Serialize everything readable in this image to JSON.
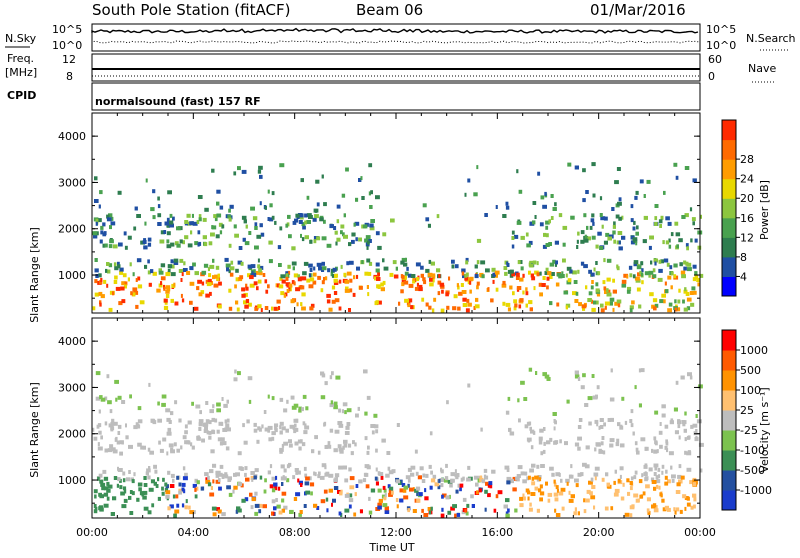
{
  "header": {
    "station": "South Pole Station (fitACF)",
    "beam": "Beam 06",
    "date": "01/Mar/2016"
  },
  "top_panels": {
    "nsky_label": "N.Sky",
    "nsearch_label": "N.Search",
    "log_ticks": [
      "10^5",
      "10^0"
    ],
    "freq_label": "Freq.",
    "freq_unit": "[MHz]",
    "freq_ticks": [
      "12",
      "8"
    ],
    "nave_label": "Nave",
    "nave_ticks": [
      "60",
      "0"
    ],
    "cpid_label": "CPID",
    "cpid_text": "normalsound (fast) 157 RF"
  },
  "colors": {
    "power_scale": [
      "#0000ff",
      "#1f4fa3",
      "#2e7d4f",
      "#49a14f",
      "#8cc63f",
      "#e8d800",
      "#ff9c00",
      "#ff6a00",
      "#ff2a00"
    ],
    "velocity_scale": [
      "#ff0000",
      "#ff5a00",
      "#ff9200",
      "#ffc070",
      "#bdbdbd",
      "#7cc24f",
      "#3b8f55",
      "#2450a0",
      "#1a3ccc"
    ]
  },
  "chart_data": [
    {
      "type": "heatmap",
      "title": "Power",
      "ylabel": "Slant Range [km]",
      "xlabel": "Time UT",
      "x_ticks": [
        "00:00",
        "04:00",
        "08:00",
        "12:00",
        "16:00",
        "20:00",
        "00:00"
      ],
      "y_ticks": [
        1000,
        2000,
        3000,
        4000
      ],
      "ylim": [
        180,
        4500
      ],
      "colorbar_label": "Power [dB]",
      "colorbar_ticks": [
        4,
        8,
        12,
        16,
        20,
        24,
        28
      ]
    },
    {
      "type": "heatmap",
      "title": "Velocity",
      "ylabel": "Slant Range [km]",
      "xlabel": "Time UT",
      "x_ticks": [
        "00:00",
        "04:00",
        "08:00",
        "12:00",
        "16:00",
        "20:00",
        "00:00"
      ],
      "y_ticks": [
        1000,
        2000,
        3000,
        4000
      ],
      "ylim": [
        180,
        4500
      ],
      "colorbar_label": "Velocity [m s⁻¹]",
      "colorbar_ticks": [
        1000,
        500,
        100,
        25,
        -25,
        -100,
        -500,
        -1000
      ]
    }
  ]
}
